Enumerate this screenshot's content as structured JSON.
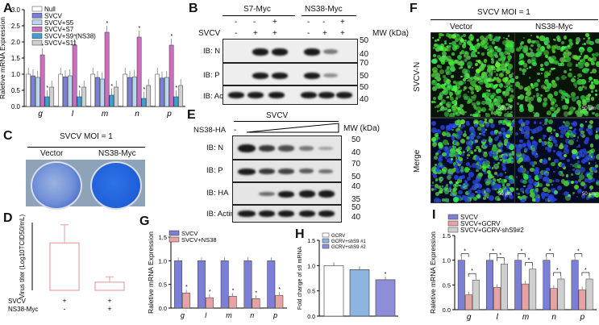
{
  "panels": {
    "A": "A",
    "B": "B",
    "C": "C",
    "D": "D",
    "E": "E",
    "F": "F",
    "G": "G",
    "H": "H",
    "I": "I"
  },
  "colors": {
    "null": "#ffffff",
    "svcv": "#7b7fd6",
    "s5": "#b9d6f0",
    "s7": "#c96fc0",
    "s9": "#3f9fd2",
    "s11": "#cfcfcf",
    "svcv_ns38": "#e7a3a3",
    "gcrv_sh1": "#8db5e0",
    "gcrv_sh2": "#8e8ed8",
    "gfp": "#3fd13f",
    "dapi": "#2233bb"
  },
  "chart_data": [
    {
      "panel": "A",
      "type": "bar",
      "ylabel": "Raletive mRNA Expression",
      "ylim": [
        0,
        3
      ],
      "yticks": [
        "0.0",
        "0.5",
        "1.0",
        "1.5",
        "2.0",
        "2.5",
        "3.0"
      ],
      "categories": [
        "g",
        "l",
        "m",
        "n",
        "p"
      ],
      "series": [
        {
          "name": "Null",
          "values": [
            1.0,
            1.0,
            1.0,
            1.0,
            1.0
          ]
        },
        {
          "name": "SVCV",
          "values": [
            0.95,
            0.92,
            0.9,
            0.9,
            0.88
          ]
        },
        {
          "name": "SVCV+S5",
          "values": [
            0.9,
            0.95,
            0.85,
            0.92,
            0.9
          ]
        },
        {
          "name": "SVCV+S7",
          "values": [
            1.6,
            1.9,
            2.3,
            2.15,
            1.9
          ]
        },
        {
          "name": "SVCV+S9 (NS38)",
          "values": [
            0.3,
            0.3,
            0.35,
            0.25,
            0.3
          ]
        },
        {
          "name": "SVCV+S11",
          "values": [
            0.6,
            0.6,
            0.6,
            0.65,
            0.65
          ]
        }
      ],
      "star": "*"
    },
    {
      "panel": "D",
      "type": "bar",
      "ylabel": "Virus titer (Log10TCID50/mL)",
      "ylim": [
        0,
        15
      ],
      "categories": [
        "1",
        "2"
      ],
      "values": [
        10.5,
        1.8
      ],
      "rows": [
        {
          "label": "SVCV",
          "marks": [
            "+",
            "+"
          ]
        },
        {
          "label": "NS38-Myc",
          "marks": [
            "-",
            "+"
          ]
        }
      ]
    },
    {
      "panel": "G",
      "type": "bar",
      "ylabel": "Raletive mRNA Expression",
      "ylim": [
        0,
        1.5
      ],
      "yticks": [
        "0.0",
        "0.5",
        "1.0",
        "1.5"
      ],
      "categories": [
        "g",
        "l",
        "m",
        "n",
        "p"
      ],
      "series": [
        {
          "name": "SVCV",
          "values": [
            1.0,
            1.0,
            1.0,
            1.0,
            1.0
          ]
        },
        {
          "name": "SVCV+NS38",
          "values": [
            0.32,
            0.22,
            0.25,
            0.2,
            0.27
          ]
        }
      ],
      "star": "*"
    },
    {
      "panel": "H",
      "type": "bar",
      "ylabel": "Fold change of s9 mRNA",
      "ylim": [
        0,
        1.5
      ],
      "yticks": [
        "0.0",
        "0.5",
        "1.0",
        "1.5"
      ],
      "categories": [
        "GCRV",
        "GCRV+shS9 #1",
        "GCRV+shS9 #2"
      ],
      "values": [
        1.0,
        0.92,
        0.72
      ],
      "legend": [
        "GCRV",
        "GCRV+shS9 #1",
        "GCRV+shS9 #2"
      ],
      "star": "*"
    },
    {
      "panel": "I",
      "type": "bar",
      "ylabel": "Raletive mRNA Expression",
      "ylim": [
        0,
        1.5
      ],
      "yticks": [
        "0.0",
        "0.5",
        "1.0",
        "1.5"
      ],
      "categories": [
        "g",
        "l",
        "m",
        "n",
        "p"
      ],
      "series": [
        {
          "name": "SVCV",
          "values": [
            1.0,
            1.0,
            1.0,
            1.0,
            1.0
          ]
        },
        {
          "name": "SVCV+GCRV",
          "values": [
            0.3,
            0.45,
            0.52,
            0.43,
            0.4
          ]
        },
        {
          "name": "SVCV+GCRV-shS9#2",
          "values": [
            0.6,
            0.92,
            0.82,
            0.62,
            0.62
          ]
        }
      ],
      "star": "*"
    }
  ],
  "B": {
    "groups": [
      "S7-Myc",
      "NS38-Myc"
    ],
    "svcv_label": "SVCV",
    "signs_top": [
      "-",
      "-",
      "+",
      "-",
      "-",
      "+"
    ],
    "signs_svcv": [
      "-",
      "+",
      "+",
      "-",
      "+",
      "+"
    ],
    "mw_label": "MW (kDa)",
    "rows": [
      {
        "label": "IB: N",
        "mw": [
          "50",
          "40"
        ]
      },
      {
        "label": "IB: P",
        "mw": [
          "70",
          "50"
        ]
      },
      {
        "label": "IB: Actin",
        "mw": [
          "50",
          "40"
        ]
      }
    ]
  },
  "E": {
    "svcv_label": "SVCV",
    "ns38_label": "NS38-HA",
    "minus": "-",
    "mw_label": "MW (kDa)",
    "rows": [
      {
        "label": "IB: N",
        "mw": [
          "50",
          "40"
        ]
      },
      {
        "label": "IB: P",
        "mw": [
          "70",
          "50"
        ]
      },
      {
        "label": "IB: HA",
        "mw": [
          "40",
          "35"
        ]
      },
      {
        "label": "IB: Actin",
        "mw": [
          "50",
          "40"
        ]
      }
    ]
  },
  "C": {
    "title": "SVCV MOI = 1",
    "wells": [
      "Vector",
      "NS38-Myc"
    ]
  },
  "F": {
    "title": "SVCV MOI = 1",
    "cols": [
      "Vector",
      "NS38-Myc"
    ],
    "rows": [
      "SVCV-N",
      "Merge"
    ],
    "scale": "50 μm"
  }
}
